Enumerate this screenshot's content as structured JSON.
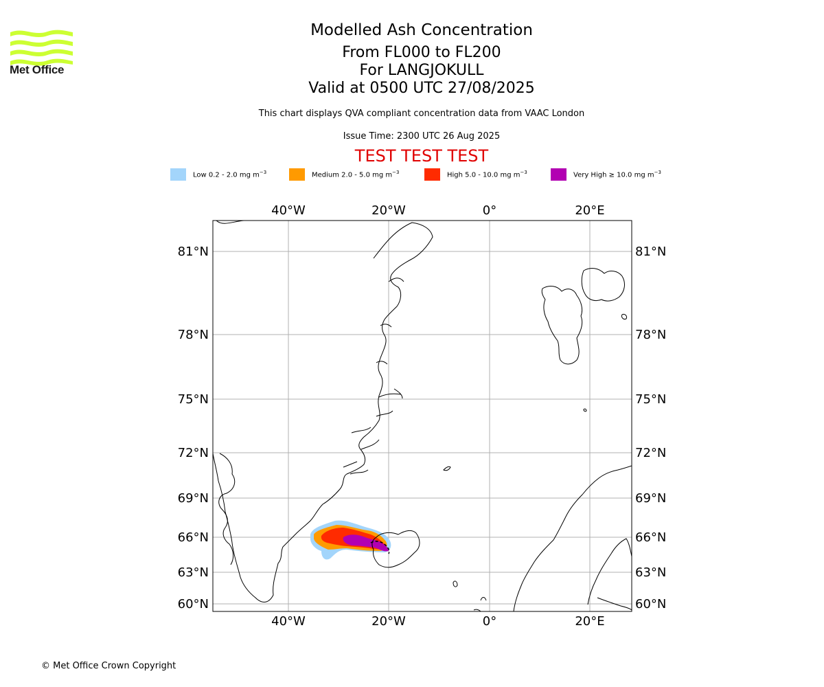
{
  "brand": {
    "logo_text": "Met Office",
    "logo_color": "#ccff33"
  },
  "titles": {
    "main": "Modelled Ash Concentration",
    "levels": "From FL000 to FL200",
    "volcano": "For LANGJOKULL",
    "valid": "Valid at 0500 UTC 27/08/2025"
  },
  "subtitle": "This chart displays QVA compliant concentration data from VAAC London",
  "issue_time": "Issue Time: 2300 UTC 26 Aug 2025",
  "test_banner": "TEST TEST TEST",
  "legend": [
    {
      "label": "Low 0.2 - 2.0 mg m",
      "color": "#a3d5fb"
    },
    {
      "label": "Medium 2.0 - 5.0 mg m",
      "color": "#ff9a00"
    },
    {
      "label": "High 5.0 - 10.0 mg m",
      "color": "#ff2b00"
    },
    {
      "label": "Very High ≥ 10.0 mg m",
      "color": "#b200b2"
    }
  ],
  "legend_unit_exp": "−3",
  "map": {
    "lon_labels": [
      "40°W",
      "20°W",
      "0°",
      "20°E"
    ],
    "lat_labels": [
      "81°N",
      "78°N",
      "75°N",
      "72°N",
      "69°N",
      "66°N",
      "63°N",
      "60°N"
    ],
    "grid_color": "#b0b0b0"
  },
  "copyright": "© Met Office Crown Copyright"
}
